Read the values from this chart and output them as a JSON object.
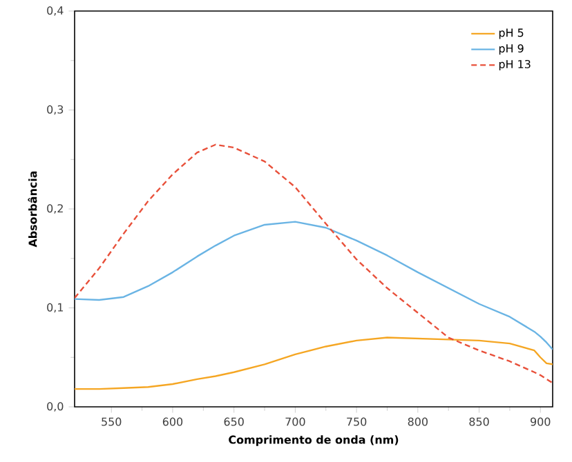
{
  "chart_data": {
    "type": "line",
    "xlabel": "Comprimento de onda (nm)",
    "ylabel": "Absorbância",
    "xlim": [
      520,
      910
    ],
    "ylim": [
      0,
      0.4
    ],
    "xticks": [
      550,
      600,
      650,
      700,
      750,
      800,
      850,
      900
    ],
    "yticks": [
      {
        "value": 0,
        "label": "0,0"
      },
      {
        "value": 0.1,
        "label": "0,1"
      },
      {
        "value": 0.2,
        "label": "0,2"
      },
      {
        "value": 0.3,
        "label": "0,3"
      },
      {
        "value": 0.4,
        "label": "0,4"
      }
    ],
    "grid": false,
    "legend": "top right",
    "x": [
      520,
      540,
      560,
      580,
      600,
      620,
      635,
      650,
      675,
      700,
      725,
      750,
      775,
      800,
      825,
      850,
      875,
      895,
      900,
      905,
      910
    ],
    "series": [
      {
        "name": "pH 5",
        "color": "#f5a623",
        "line_style": "solid",
        "values": [
          0.018,
          0.018,
          0.019,
          0.02,
          0.023,
          0.028,
          0.031,
          0.035,
          0.043,
          0.053,
          0.061,
          0.067,
          0.07,
          0.069,
          0.068,
          0.067,
          0.064,
          0.057,
          0.05,
          0.044,
          0.043
        ]
      },
      {
        "name": "pH 9",
        "color": "#6ab4e4",
        "line_style": "solid",
        "values": [
          0.109,
          0.108,
          0.111,
          0.122,
          0.136,
          0.152,
          0.163,
          0.173,
          0.184,
          0.187,
          0.181,
          0.168,
          0.153,
          0.136,
          0.12,
          0.104,
          0.091,
          0.076,
          0.071,
          0.065,
          0.058
        ]
      },
      {
        "name": "pH 13",
        "color": "#e8503a",
        "line_style": "dashed",
        "values": [
          0.11,
          0.14,
          0.175,
          0.208,
          0.235,
          0.257,
          0.265,
          0.262,
          0.248,
          0.222,
          0.185,
          0.149,
          0.12,
          0.095,
          0.07,
          0.057,
          0.046,
          0.035,
          0.032,
          0.028,
          0.024
        ]
      }
    ]
  }
}
